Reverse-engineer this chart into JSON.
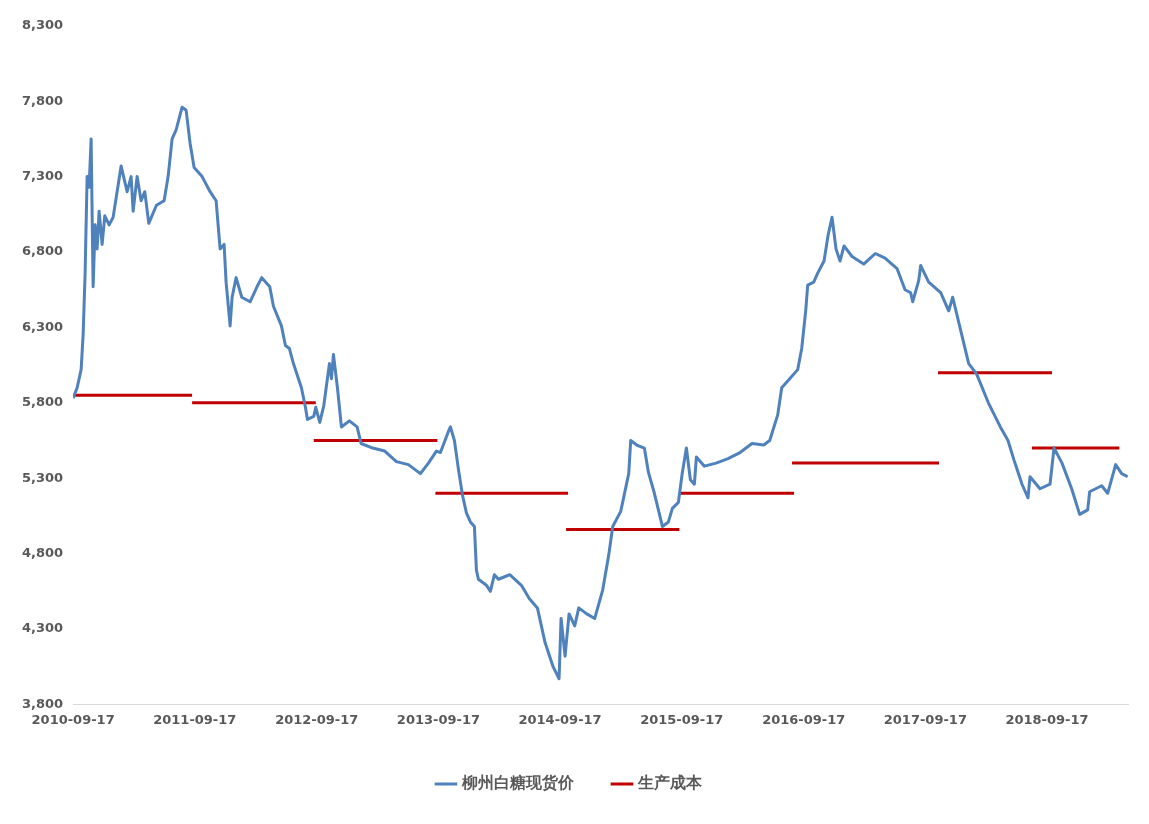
{
  "chart_data": {
    "type": "line",
    "legend": "bottom",
    "grid": false,
    "marker": "none",
    "line_style": "solid",
    "xlim": [
      "2010-09-17",
      "2019-05-18"
    ],
    "xticks": [
      {
        "value": "2010-09-17",
        "label": "2010-09-17"
      },
      {
        "value": "2011-09-17",
        "label": "2011-09-17"
      },
      {
        "value": "2012-09-17",
        "label": "2012-09-17"
      },
      {
        "value": "2013-09-17",
        "label": "2013-09-17"
      },
      {
        "value": "2014-09-17",
        "label": "2014-09-17"
      },
      {
        "value": "2015-09-17",
        "label": "2015-09-17"
      },
      {
        "value": "2016-09-17",
        "label": "2016-09-17"
      },
      {
        "value": "2017-09-17",
        "label": "2017-09-17"
      },
      {
        "value": "2018-09-17",
        "label": "2018-09-17"
      }
    ],
    "ylim": [
      3800,
      8300
    ],
    "yticks": [
      {
        "value": 3800,
        "label": "3,800"
      },
      {
        "value": 4300,
        "label": "4,300"
      },
      {
        "value": 4800,
        "label": "4,800"
      },
      {
        "value": 5300,
        "label": "5,300"
      },
      {
        "value": 5800,
        "label": "5,800"
      },
      {
        "value": 6300,
        "label": "6,300"
      },
      {
        "value": 6800,
        "label": "6,800"
      },
      {
        "value": 7300,
        "label": "7,300"
      },
      {
        "value": 7800,
        "label": "7,800"
      },
      {
        "value": 8300,
        "label": "8,300"
      }
    ],
    "series": [
      {
        "name": "柳州白糖现货价",
        "color": "#4f81bd",
        "x": [
          "2010-09-17",
          "2010-09-29",
          "2010-10-11",
          "2010-10-17",
          "2010-10-23",
          "2010-10-29",
          "2010-11-04",
          "2010-11-10",
          "2010-11-16",
          "2010-11-22",
          "2010-11-28",
          "2010-12-04",
          "2010-12-13",
          "2010-12-21",
          "2011-01-03",
          "2011-01-15",
          "2011-02-08",
          "2011-02-26",
          "2011-03-10",
          "2011-03-16",
          "2011-03-28",
          "2011-04-09",
          "2011-04-20",
          "2011-05-02",
          "2011-05-25",
          "2011-06-17",
          "2011-06-29",
          "2011-07-11",
          "2011-07-23",
          "2011-08-10",
          "2011-08-22",
          "2011-09-03",
          "2011-09-15",
          "2011-10-09",
          "2011-11-02",
          "2011-11-20",
          "2011-11-26",
          "2011-12-02",
          "2011-12-14",
          "2011-12-20",
          "2012-01-01",
          "2012-01-07",
          "2012-01-19",
          "2012-02-05",
          "2012-03-01",
          "2012-03-24",
          "2012-04-05",
          "2012-04-29",
          "2012-05-10",
          "2012-06-03",
          "2012-06-15",
          "2012-06-27",
          "2012-07-09",
          "2012-08-02",
          "2012-08-14",
          "2012-08-20",
          "2012-09-08",
          "2012-09-14",
          "2012-09-26",
          "2012-10-08",
          "2012-10-25",
          "2012-10-31",
          "2012-11-06",
          "2012-11-18",
          "2012-11-30",
          "2012-12-24",
          "2013-01-16",
          "2013-01-28",
          "2013-03-04",
          "2013-04-09",
          "2013-05-14",
          "2013-06-19",
          "2013-07-25",
          "2013-08-18",
          "2013-09-11",
          "2013-09-23",
          "2013-10-17",
          "2013-10-23",
          "2013-11-04",
          "2013-11-16",
          "2013-11-28",
          "2013-12-10",
          "2013-12-22",
          "2014-01-03",
          "2014-01-09",
          "2014-01-15",
          "2014-02-08",
          "2014-02-20",
          "2014-03-04",
          "2014-03-16",
          "2014-04-19",
          "2014-05-24",
          "2014-06-17",
          "2014-07-11",
          "2014-08-03",
          "2014-08-27",
          "2014-09-14",
          "2014-09-20",
          "2014-10-02",
          "2014-10-14",
          "2014-10-31",
          "2014-11-12",
          "2014-12-06",
          "2014-12-30",
          "2015-01-23",
          "2015-02-10",
          "2015-02-22",
          "2015-03-18",
          "2015-04-11",
          "2015-04-17",
          "2015-05-05",
          "2015-05-28",
          "2015-06-09",
          "2015-06-27",
          "2015-07-21",
          "2015-08-08",
          "2015-08-20",
          "2015-09-07",
          "2015-09-19",
          "2015-10-01",
          "2015-10-13",
          "2015-10-25",
          "2015-10-31",
          "2015-11-24",
          "2015-12-29",
          "2016-02-03",
          "2016-03-10",
          "2016-04-15",
          "2016-05-20",
          "2016-06-07",
          "2016-07-01",
          "2016-07-13",
          "2016-08-06",
          "2016-08-30",
          "2016-09-11",
          "2016-09-23",
          "2016-09-29",
          "2016-10-17",
          "2016-10-29",
          "2016-11-17",
          "2016-11-29",
          "2016-12-11",
          "2016-12-23",
          "2017-01-04",
          "2017-01-16",
          "2017-02-09",
          "2017-03-16",
          "2017-04-20",
          "2017-05-19",
          "2017-06-24",
          "2017-07-18",
          "2017-08-04",
          "2017-08-10",
          "2017-08-28",
          "2017-09-03",
          "2017-09-27",
          "2017-11-02",
          "2017-11-26",
          "2017-12-08",
          "2018-01-01",
          "2018-01-25",
          "2018-02-18",
          "2018-03-25",
          "2018-04-30",
          "2018-05-23",
          "2018-06-10",
          "2018-07-04",
          "2018-07-22",
          "2018-07-28",
          "2018-08-27",
          "2018-09-26",
          "2018-10-08",
          "2018-11-01",
          "2018-11-30",
          "2018-12-24",
          "2019-01-17",
          "2019-01-23",
          "2019-02-28",
          "2019-03-18",
          "2019-04-11",
          "2019-04-29",
          "2019-05-17"
        ],
        "values": [
          5830,
          5900,
          6020,
          6250,
          6660,
          7300,
          7230,
          7550,
          6570,
          6980,
          6820,
          7070,
          6850,
          7040,
          6980,
          7030,
          7370,
          7200,
          7300,
          7070,
          7300,
          7140,
          7200,
          6990,
          7110,
          7140,
          7300,
          7550,
          7610,
          7760,
          7740,
          7520,
          7360,
          7300,
          7200,
          7140,
          6980,
          6820,
          6850,
          6600,
          6310,
          6500,
          6630,
          6500,
          6470,
          6580,
          6630,
          6570,
          6440,
          6310,
          6180,
          6160,
          6060,
          5900,
          5770,
          5690,
          5710,
          5770,
          5670,
          5780,
          6060,
          5960,
          6120,
          5900,
          5640,
          5680,
          5640,
          5530,
          5500,
          5480,
          5410,
          5390,
          5330,
          5400,
          5480,
          5470,
          5610,
          5640,
          5550,
          5360,
          5190,
          5070,
          5010,
          4980,
          4690,
          4630,
          4590,
          4550,
          4660,
          4630,
          4660,
          4590,
          4500,
          4440,
          4210,
          4050,
          3970,
          4370,
          4120,
          4400,
          4320,
          4440,
          4400,
          4370,
          4560,
          4790,
          4980,
          5080,
          5330,
          5550,
          5520,
          5500,
          5340,
          5200,
          4980,
          5010,
          5100,
          5140,
          5340,
          5500,
          5290,
          5260,
          5440,
          5380,
          5400,
          5430,
          5470,
          5530,
          5520,
          5550,
          5720,
          5900,
          5960,
          6020,
          6160,
          6410,
          6580,
          6600,
          6660,
          6740,
          6910,
          7030,
          6820,
          6740,
          6840,
          6770,
          6720,
          6790,
          6760,
          6690,
          6550,
          6530,
          6470,
          6610,
          6710,
          6600,
          6530,
          6410,
          6500,
          6280,
          6060,
          5990,
          5800,
          5640,
          5550,
          5420,
          5260,
          5170,
          5310,
          5230,
          5260,
          5500,
          5400,
          5230,
          5060,
          5090,
          5210,
          5250,
          5200,
          5390,
          5330,
          5310
        ]
      },
      {
        "name": "生产成本",
        "color": "#c00000",
        "x": [
          "2010-09-17",
          "2011-09-09"
        ],
        "values": [
          5850,
          5850
        ]
      },
      {
        "color": "#c00000",
        "x": [
          "2011-09-09",
          "2012-09-14"
        ],
        "values": [
          5800,
          5800
        ]
      },
      {
        "color": "#c00000",
        "x": [
          "2012-09-08",
          "2013-09-14"
        ],
        "values": [
          5550,
          5550
        ]
      },
      {
        "color": "#c00000",
        "x": [
          "2013-09-08",
          "2014-10-11"
        ],
        "values": [
          5200,
          5200
        ]
      },
      {
        "color": "#c00000",
        "x": [
          "2014-10-05",
          "2015-09-10"
        ],
        "values": [
          4960,
          4960
        ]
      },
      {
        "color": "#c00000",
        "x": [
          "2015-09-10",
          "2016-08-19"
        ],
        "values": [
          5200,
          5200
        ]
      },
      {
        "color": "#c00000",
        "x": [
          "2016-08-13",
          "2017-10-28"
        ],
        "values": [
          5400,
          5400
        ]
      },
      {
        "color": "#c00000",
        "x": [
          "2017-10-25",
          "2018-10-02"
        ],
        "values": [
          6000,
          6000
        ]
      },
      {
        "color": "#c00000",
        "x": [
          "2018-08-03",
          "2019-04-22"
        ],
        "values": [
          5500,
          5500
        ]
      }
    ]
  }
}
